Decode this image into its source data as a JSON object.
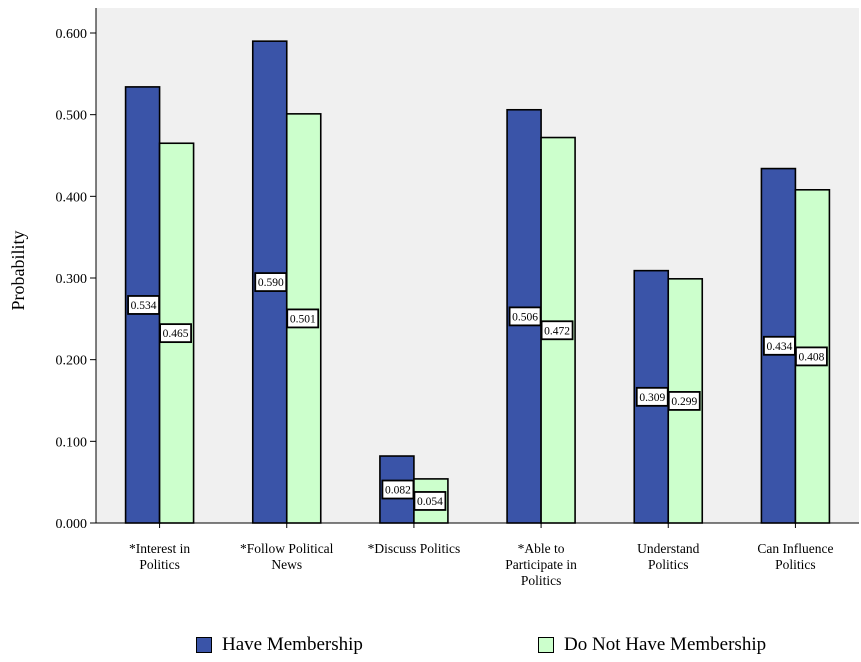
{
  "chart_data": {
    "type": "bar",
    "ylabel": "Probability",
    "ylim": [
      0,
      0.6
    ],
    "yticks": [
      "0.000",
      "0.100",
      "0.200",
      "0.300",
      "0.400",
      "0.500",
      "0.600"
    ],
    "ytick_values": [
      0,
      0.1,
      0.2,
      0.3,
      0.4,
      0.5,
      0.6
    ],
    "grid": false,
    "legend_position": "bottom",
    "categories": [
      [
        "*Interest in",
        "Politics"
      ],
      [
        "*Follow Political",
        "News"
      ],
      [
        "*Discuss Politics"
      ],
      [
        "*Able to",
        "Participate in",
        "Politics"
      ],
      [
        "Understand",
        "Politics"
      ],
      [
        "Can Influence",
        "Politics"
      ]
    ],
    "series": [
      {
        "name": "Have Membership",
        "color": "#3a54a8",
        "values": [
          0.534,
          0.59,
          0.082,
          0.506,
          0.309,
          0.434
        ],
        "labels": [
          "0.534",
          "0.590",
          "0.082",
          "0.506",
          "0.309",
          "0.434"
        ]
      },
      {
        "name": "Do Not Have Membership",
        "color": "#ccffcc",
        "values": [
          0.465,
          0.501,
          0.054,
          0.472,
          0.299,
          0.408
        ],
        "labels": [
          "0.465",
          "0.501",
          "0.054",
          "0.472",
          "0.299",
          "0.408"
        ]
      }
    ],
    "plot_background": "#f0f0f0"
  }
}
